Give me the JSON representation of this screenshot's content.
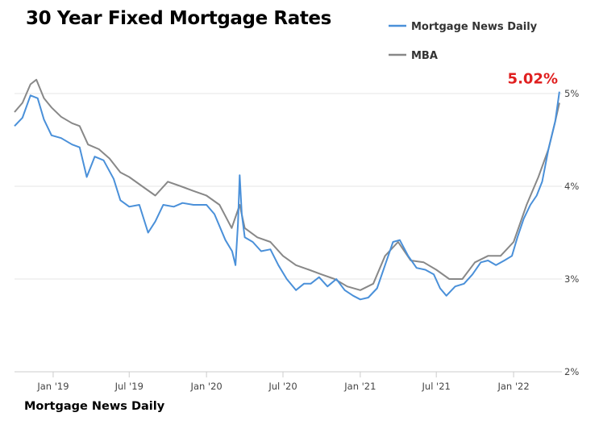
{
  "chart_data": {
    "type": "line",
    "title": "30 Year Fixed Mortgage Rates",
    "source": "Mortgage News Daily",
    "xlabel": "",
    "ylabel": "",
    "y_unit": "%",
    "ylim": [
      2,
      5
    ],
    "y_ticks": [
      {
        "value": 2,
        "label": "2%"
      },
      {
        "value": 3,
        "label": "3%"
      },
      {
        "value": 4,
        "label": "4%"
      },
      {
        "value": 5,
        "label": "5%"
      }
    ],
    "xlim": [
      "2018-10-01",
      "2022-04-26"
    ],
    "x_ticks": [
      {
        "date": "2019-01-01",
        "label": "Jan '19"
      },
      {
        "date": "2019-07-01",
        "label": "Jul '19"
      },
      {
        "date": "2020-01-01",
        "label": "Jan '20"
      },
      {
        "date": "2020-07-01",
        "label": "Jul '20"
      },
      {
        "date": "2021-01-01",
        "label": "Jan '21"
      },
      {
        "date": "2021-07-01",
        "label": "Jul '21"
      },
      {
        "date": "2022-01-01",
        "label": "Jan '22"
      }
    ],
    "grid": {
      "horizontal": true,
      "vertical": false
    },
    "legend": {
      "position": "top-right"
    },
    "annotation": {
      "text": "5.02%",
      "color": "#e02020",
      "date": "2022-04-20",
      "value": 5.02
    },
    "series": [
      {
        "name": "Mortgage News Daily",
        "color": "#4a90d9",
        "points": [
          [
            "2018-10-01",
            4.65
          ],
          [
            "2018-10-20",
            4.74
          ],
          [
            "2018-11-08",
            4.98
          ],
          [
            "2018-11-25",
            4.95
          ],
          [
            "2018-12-10",
            4.72
          ],
          [
            "2018-12-28",
            4.55
          ],
          [
            "2019-01-20",
            4.52
          ],
          [
            "2019-02-15",
            4.45
          ],
          [
            "2019-03-05",
            4.42
          ],
          [
            "2019-03-22",
            4.1
          ],
          [
            "2019-04-10",
            4.32
          ],
          [
            "2019-05-01",
            4.28
          ],
          [
            "2019-05-25",
            4.08
          ],
          [
            "2019-06-10",
            3.85
          ],
          [
            "2019-07-01",
            3.78
          ],
          [
            "2019-07-25",
            3.8
          ],
          [
            "2019-08-15",
            3.5
          ],
          [
            "2019-09-01",
            3.62
          ],
          [
            "2019-09-20",
            3.8
          ],
          [
            "2019-10-15",
            3.78
          ],
          [
            "2019-11-05",
            3.82
          ],
          [
            "2019-12-01",
            3.8
          ],
          [
            "2020-01-01",
            3.8
          ],
          [
            "2020-01-20",
            3.7
          ],
          [
            "2020-02-15",
            3.42
          ],
          [
            "2020-03-02",
            3.3
          ],
          [
            "2020-03-10",
            3.15
          ],
          [
            "2020-03-16",
            3.6
          ],
          [
            "2020-03-20",
            4.12
          ],
          [
            "2020-03-25",
            3.7
          ],
          [
            "2020-04-01",
            3.45
          ],
          [
            "2020-04-20",
            3.4
          ],
          [
            "2020-05-10",
            3.3
          ],
          [
            "2020-06-01",
            3.32
          ],
          [
            "2020-06-20",
            3.15
          ],
          [
            "2020-07-10",
            3.0
          ],
          [
            "2020-08-01",
            2.88
          ],
          [
            "2020-08-20",
            2.95
          ],
          [
            "2020-09-05",
            2.95
          ],
          [
            "2020-09-25",
            3.02
          ],
          [
            "2020-10-15",
            2.92
          ],
          [
            "2020-11-05",
            3.0
          ],
          [
            "2020-11-25",
            2.88
          ],
          [
            "2020-12-15",
            2.82
          ],
          [
            "2021-01-01",
            2.78
          ],
          [
            "2021-01-20",
            2.8
          ],
          [
            "2021-02-10",
            2.9
          ],
          [
            "2021-03-01",
            3.15
          ],
          [
            "2021-03-20",
            3.4
          ],
          [
            "2021-04-05",
            3.42
          ],
          [
            "2021-04-25",
            3.25
          ],
          [
            "2021-05-15",
            3.12
          ],
          [
            "2021-06-05",
            3.1
          ],
          [
            "2021-06-25",
            3.05
          ],
          [
            "2021-07-10",
            2.9
          ],
          [
            "2021-07-25",
            2.82
          ],
          [
            "2021-08-15",
            2.92
          ],
          [
            "2021-09-05",
            2.95
          ],
          [
            "2021-09-25",
            3.05
          ],
          [
            "2021-10-15",
            3.18
          ],
          [
            "2021-11-01",
            3.2
          ],
          [
            "2021-11-20",
            3.15
          ],
          [
            "2021-12-10",
            3.2
          ],
          [
            "2021-12-28",
            3.25
          ],
          [
            "2022-01-10",
            3.45
          ],
          [
            "2022-01-25",
            3.65
          ],
          [
            "2022-02-10",
            3.8
          ],
          [
            "2022-02-25",
            3.9
          ],
          [
            "2022-03-10",
            4.05
          ],
          [
            "2022-03-25",
            4.4
          ],
          [
            "2022-04-10",
            4.7
          ],
          [
            "2022-04-20",
            5.02
          ]
        ]
      },
      {
        "name": "MBA",
        "color": "#888888",
        "points": [
          [
            "2018-10-01",
            4.8
          ],
          [
            "2018-10-20",
            4.9
          ],
          [
            "2018-11-08",
            5.1
          ],
          [
            "2018-11-22",
            5.15
          ],
          [
            "2018-12-10",
            4.95
          ],
          [
            "2018-12-28",
            4.85
          ],
          [
            "2019-01-20",
            4.75
          ],
          [
            "2019-02-15",
            4.68
          ],
          [
            "2019-03-05",
            4.65
          ],
          [
            "2019-03-25",
            4.45
          ],
          [
            "2019-04-20",
            4.4
          ],
          [
            "2019-05-15",
            4.3
          ],
          [
            "2019-06-10",
            4.15
          ],
          [
            "2019-07-01",
            4.1
          ],
          [
            "2019-08-01",
            4.0
          ],
          [
            "2019-09-01",
            3.9
          ],
          [
            "2019-10-01",
            4.05
          ],
          [
            "2019-11-01",
            4.0
          ],
          [
            "2019-12-01",
            3.95
          ],
          [
            "2020-01-01",
            3.9
          ],
          [
            "2020-02-01",
            3.8
          ],
          [
            "2020-03-01",
            3.55
          ],
          [
            "2020-03-20",
            3.8
          ],
          [
            "2020-04-01",
            3.55
          ],
          [
            "2020-05-01",
            3.45
          ],
          [
            "2020-06-01",
            3.4
          ],
          [
            "2020-07-01",
            3.25
          ],
          [
            "2020-08-01",
            3.15
          ],
          [
            "2020-09-01",
            3.1
          ],
          [
            "2020-10-01",
            3.05
          ],
          [
            "2020-11-01",
            3.0
          ],
          [
            "2020-12-01",
            2.92
          ],
          [
            "2021-01-01",
            2.88
          ],
          [
            "2021-02-01",
            2.95
          ],
          [
            "2021-03-01",
            3.25
          ],
          [
            "2021-04-01",
            3.4
          ],
          [
            "2021-05-01",
            3.2
          ],
          [
            "2021-06-01",
            3.18
          ],
          [
            "2021-07-01",
            3.1
          ],
          [
            "2021-08-01",
            3.0
          ],
          [
            "2021-09-01",
            3.0
          ],
          [
            "2021-10-01",
            3.18
          ],
          [
            "2021-11-01",
            3.25
          ],
          [
            "2021-12-01",
            3.25
          ],
          [
            "2022-01-01",
            3.4
          ],
          [
            "2022-02-01",
            3.8
          ],
          [
            "2022-03-01",
            4.1
          ],
          [
            "2022-03-25",
            4.4
          ],
          [
            "2022-04-10",
            4.7
          ],
          [
            "2022-04-20",
            4.9
          ]
        ]
      }
    ]
  }
}
